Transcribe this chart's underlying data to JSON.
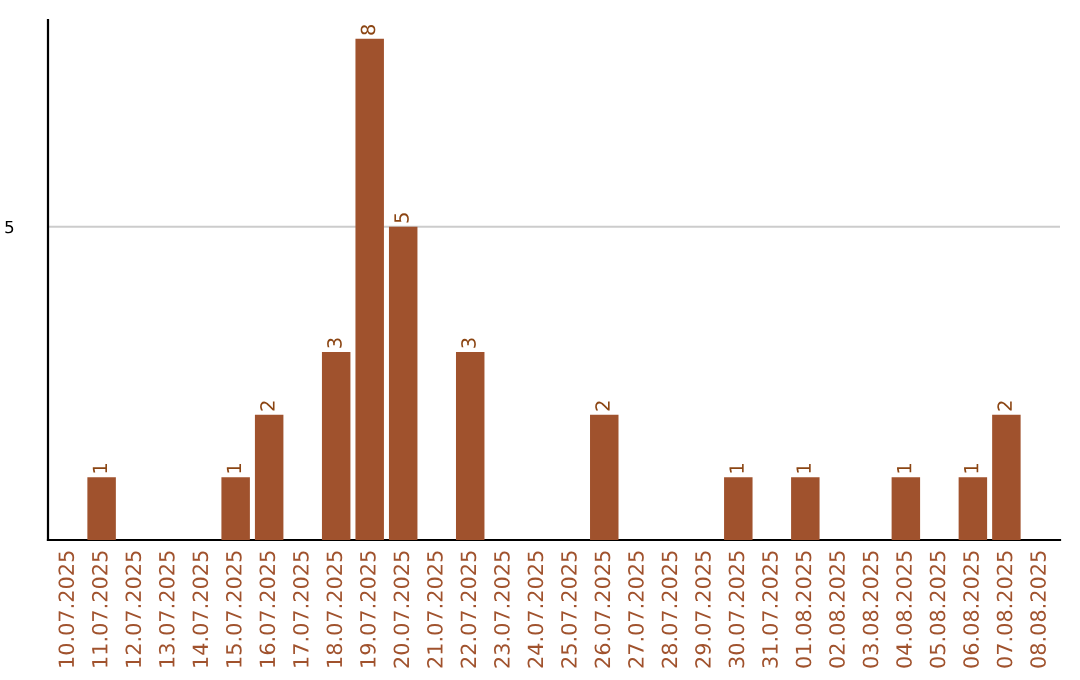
{
  "chart_data": {
    "type": "bar",
    "categories": [
      "10.07.2025",
      "11.07.2025",
      "12.07.2025",
      "13.07.2025",
      "14.07.2025",
      "15.07.2025",
      "16.07.2025",
      "17.07.2025",
      "18.07.2025",
      "19.07.2025",
      "20.07.2025",
      "21.07.2025",
      "22.07.2025",
      "23.07.2025",
      "24.07.2025",
      "25.07.2025",
      "26.07.2025",
      "27.07.2025",
      "28.07.2025",
      "29.07.2025",
      "30.07.2025",
      "31.07.2025",
      "01.08.2025",
      "02.08.2025",
      "03.08.2025",
      "04.08.2025",
      "05.08.2025",
      "06.08.2025",
      "07.08.2025",
      "08.08.2025"
    ],
    "values": [
      0,
      1,
      0,
      0,
      0,
      1,
      2,
      0,
      3,
      8,
      5,
      0,
      3,
      0,
      0,
      0,
      2,
      0,
      0,
      0,
      1,
      0,
      1,
      0,
      0,
      1,
      0,
      1,
      2,
      0
    ],
    "value_labels": [
      null,
      "1",
      null,
      null,
      null,
      "1",
      "2",
      null,
      "3",
      "8",
      "5",
      null,
      "3",
      null,
      null,
      null,
      "2",
      null,
      null,
      null,
      "1",
      null,
      "1",
      null,
      null,
      "1",
      null,
      "1",
      "2",
      null
    ],
    "color": "#a0522d",
    "ylim": [
      0,
      8.3
    ],
    "yticks": [
      5
    ],
    "grid": "y"
  }
}
